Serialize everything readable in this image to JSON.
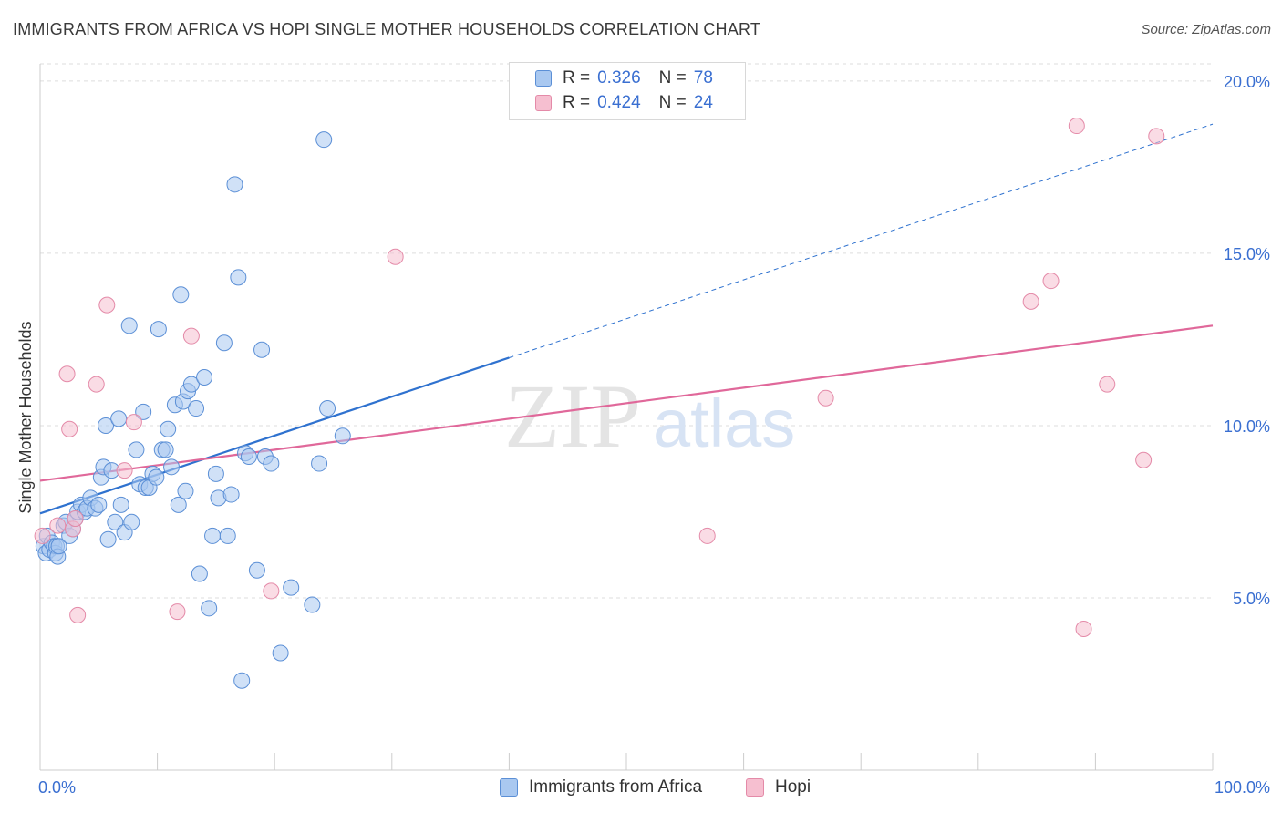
{
  "title": "IMMIGRANTS FROM AFRICA VS HOPI SINGLE MOTHER HOUSEHOLDS CORRELATION CHART",
  "source": "Source: ZipAtlas.com",
  "watermark": {
    "zip": "ZIP",
    "atlas": "atlas"
  },
  "legend_top": {
    "rows": [
      {
        "r_label": "R = ",
        "r_value": "0.326",
        "n_label": "N = ",
        "n_value": "78"
      },
      {
        "r_label": "R = ",
        "r_value": "0.424",
        "n_label": "N = ",
        "n_value": "24"
      }
    ]
  },
  "colors": {
    "africa_fill": "#a9c8f0",
    "africa_stroke": "#5b8fd6",
    "africa_line": "#2f72cf",
    "hopi_fill": "#f6bfd0",
    "hopi_stroke": "#e48aa8",
    "hopi_line": "#e0689a",
    "tick_label": "#3a6fd1",
    "grid": "#dddddd"
  },
  "chart_data": {
    "type": "scatter",
    "title": "IMMIGRANTS FROM AFRICA VS HOPI SINGLE MOTHER HOUSEHOLDS CORRELATION CHART",
    "xlabel": "",
    "ylabel": "Single Mother Households",
    "xlim": [
      0,
      100
    ],
    "ylim": [
      0,
      20.5
    ],
    "x_tick_labels": [
      "0.0%",
      "100.0%"
    ],
    "y_ticks": [
      5,
      10,
      15,
      20
    ],
    "y_tick_labels": [
      "5.0%",
      "10.0%",
      "15.0%",
      "20.0%"
    ],
    "grid": true,
    "legend_position": "bottom",
    "series": [
      {
        "name": "Immigrants from Africa",
        "points": [
          [
            0.3,
            6.5
          ],
          [
            0.5,
            6.3
          ],
          [
            0.6,
            6.8
          ],
          [
            0.8,
            6.4
          ],
          [
            1.0,
            6.6
          ],
          [
            1.2,
            6.5
          ],
          [
            1.3,
            6.3
          ],
          [
            1.4,
            6.5
          ],
          [
            1.5,
            6.2
          ],
          [
            1.6,
            6.5
          ],
          [
            2.0,
            7.1
          ],
          [
            2.2,
            7.2
          ],
          [
            2.5,
            6.8
          ],
          [
            2.8,
            7.0
          ],
          [
            3.0,
            7.3
          ],
          [
            3.2,
            7.5
          ],
          [
            3.5,
            7.7
          ],
          [
            3.8,
            7.5
          ],
          [
            4.0,
            7.6
          ],
          [
            4.3,
            7.9
          ],
          [
            4.7,
            7.6
          ],
          [
            5.0,
            7.7
          ],
          [
            5.2,
            8.5
          ],
          [
            5.4,
            8.8
          ],
          [
            5.6,
            10.0
          ],
          [
            5.8,
            6.7
          ],
          [
            6.1,
            8.7
          ],
          [
            6.4,
            7.2
          ],
          [
            6.7,
            10.2
          ],
          [
            6.9,
            7.7
          ],
          [
            7.2,
            6.9
          ],
          [
            7.6,
            12.9
          ],
          [
            7.8,
            7.2
          ],
          [
            8.2,
            9.3
          ],
          [
            8.5,
            8.3
          ],
          [
            8.8,
            10.4
          ],
          [
            9.0,
            8.2
          ],
          [
            9.3,
            8.2
          ],
          [
            9.6,
            8.6
          ],
          [
            9.9,
            8.5
          ],
          [
            10.1,
            12.8
          ],
          [
            10.4,
            9.3
          ],
          [
            10.7,
            9.3
          ],
          [
            10.9,
            9.9
          ],
          [
            11.2,
            8.8
          ],
          [
            11.5,
            10.6
          ],
          [
            11.8,
            7.7
          ],
          [
            12.0,
            13.8
          ],
          [
            12.2,
            10.7
          ],
          [
            12.4,
            8.1
          ],
          [
            12.6,
            11.0
          ],
          [
            12.9,
            11.2
          ],
          [
            13.3,
            10.5
          ],
          [
            13.6,
            5.7
          ],
          [
            14.0,
            11.4
          ],
          [
            14.4,
            4.7
          ],
          [
            14.7,
            6.8
          ],
          [
            15.0,
            8.6
          ],
          [
            15.2,
            7.9
          ],
          [
            15.7,
            12.4
          ],
          [
            16.0,
            6.8
          ],
          [
            16.3,
            8.0
          ],
          [
            16.6,
            17.0
          ],
          [
            16.9,
            14.3
          ],
          [
            17.2,
            2.6
          ],
          [
            17.5,
            9.2
          ],
          [
            17.8,
            9.1
          ],
          [
            18.5,
            5.8
          ],
          [
            18.9,
            12.2
          ],
          [
            19.2,
            9.1
          ],
          [
            19.7,
            8.9
          ],
          [
            20.5,
            3.4
          ],
          [
            21.4,
            5.3
          ],
          [
            23.2,
            4.8
          ],
          [
            23.8,
            8.9
          ],
          [
            24.2,
            18.3
          ],
          [
            24.5,
            10.5
          ],
          [
            25.8,
            9.7
          ]
        ]
      },
      {
        "name": "Hopi",
        "points": [
          [
            0.2,
            6.8
          ],
          [
            1.5,
            7.1
          ],
          [
            2.3,
            11.5
          ],
          [
            2.5,
            9.9
          ],
          [
            2.8,
            7.0
          ],
          [
            3.0,
            7.3
          ],
          [
            3.2,
            4.5
          ],
          [
            4.8,
            11.2
          ],
          [
            5.7,
            13.5
          ],
          [
            7.2,
            8.7
          ],
          [
            8.0,
            10.1
          ],
          [
            11.7,
            4.6
          ],
          [
            12.9,
            12.6
          ],
          [
            19.7,
            5.2
          ],
          [
            30.3,
            14.9
          ],
          [
            56.9,
            6.8
          ],
          [
            67.0,
            10.8
          ],
          [
            84.5,
            13.6
          ],
          [
            86.2,
            14.2
          ],
          [
            88.4,
            18.7
          ],
          [
            89.0,
            4.1
          ],
          [
            91.0,
            11.2
          ],
          [
            94.1,
            9.0
          ],
          [
            95.2,
            18.4
          ]
        ]
      }
    ],
    "trendlines": [
      {
        "series": "Immigrants from Africa",
        "x_start": 0,
        "y_start": 7.45,
        "x_solid_end": 40,
        "x_end": 100,
        "y_end": 18.75
      },
      {
        "series": "Hopi",
        "x_start": 0,
        "y_start": 8.4,
        "x_end": 100,
        "y_end": 12.9
      }
    ]
  }
}
